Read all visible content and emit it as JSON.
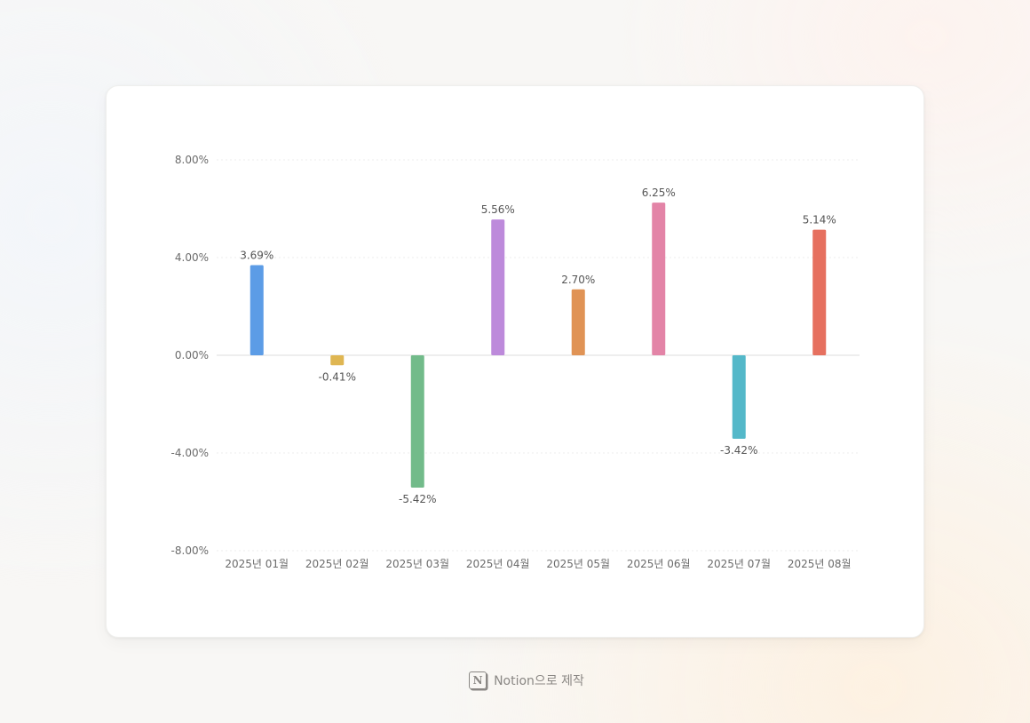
{
  "chart_data": {
    "type": "bar",
    "categories": [
      "2025년 01월",
      "2025년 02월",
      "2025년 03월",
      "2025년 04월",
      "2025년 05월",
      "2025년 06월",
      "2025년 07월",
      "2025년 08월"
    ],
    "values": [
      3.69,
      -0.41,
      -5.42,
      5.56,
      2.7,
      6.25,
      -3.42,
      5.14
    ],
    "data_labels": [
      "3.69%",
      "-0.41%",
      "-5.42%",
      "5.56%",
      "2.70%",
      "6.25%",
      "-3.42%",
      "5.14%"
    ],
    "colors": [
      "#5c9ce6",
      "#dfb652",
      "#72bb8a",
      "#bd8adb",
      "#e09355",
      "#e384a7",
      "#54b8c9",
      "#e6705f"
    ],
    "ylim": [
      -8,
      8
    ],
    "yticks": [
      8,
      4,
      0,
      -4,
      -8
    ],
    "ytick_labels": [
      "8.00%",
      "4.00%",
      "0.00%",
      "-4.00%",
      "-8.00%"
    ],
    "grid": true,
    "legend": "none"
  },
  "footer": {
    "logo_glyph": "N",
    "text": "Notion으로 제작"
  }
}
